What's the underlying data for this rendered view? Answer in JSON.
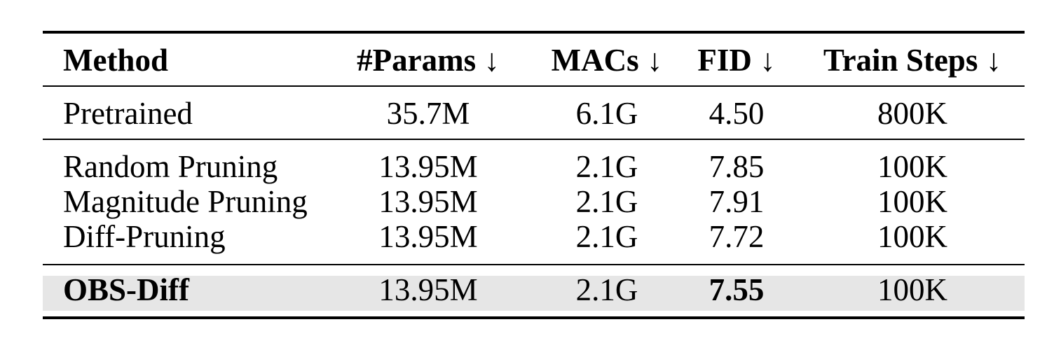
{
  "table": {
    "headers": [
      "Method",
      "#Params ↓",
      "MACs ↓",
      "FID ↓",
      "Train Steps ↓"
    ],
    "rows": [
      {
        "method": "Pretrained",
        "params": "35.7M",
        "macs": "6.1G",
        "fid": "4.50",
        "steps": "800K"
      },
      {
        "method": "Random Pruning",
        "params": "13.95M",
        "macs": "2.1G",
        "fid": "7.85",
        "steps": "100K"
      },
      {
        "method": "Magnitude Pruning",
        "params": "13.95M",
        "macs": "2.1G",
        "fid": "7.91",
        "steps": "100K"
      },
      {
        "method": "Diff-Pruning",
        "params": "13.95M",
        "macs": "2.1G",
        "fid": "7.72",
        "steps": "100K"
      },
      {
        "method": "OBS-Diff",
        "params": "13.95M",
        "macs": "2.1G",
        "fid": "7.55",
        "steps": "100K"
      }
    ],
    "highlight_color": "#e6e6e6"
  }
}
